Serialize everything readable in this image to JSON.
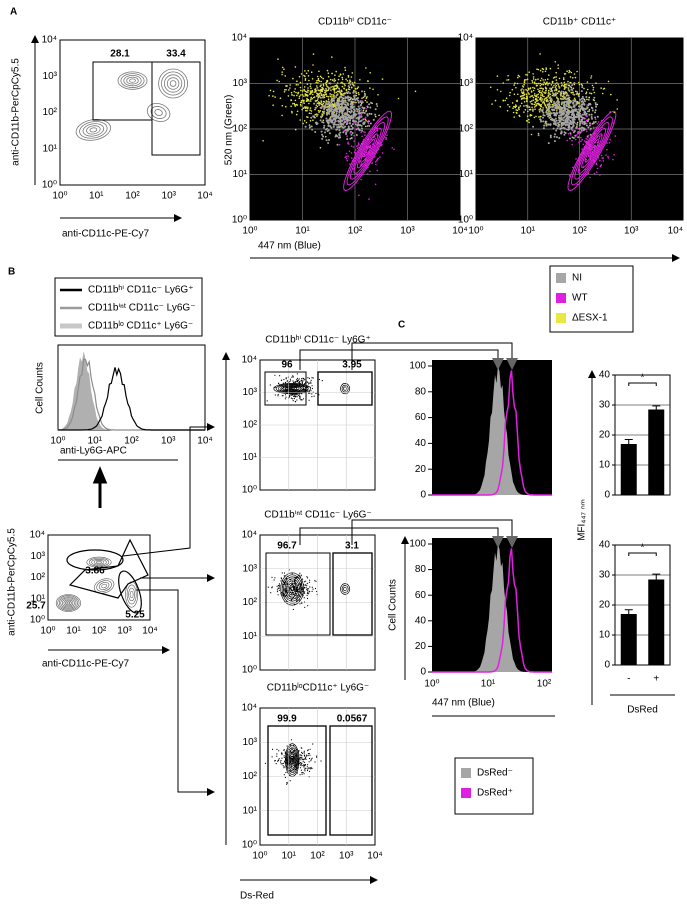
{
  "figure": {
    "log_ticks": [
      "10⁰",
      "10¹",
      "10²",
      "10³",
      "10⁴"
    ],
    "A": {
      "letter": "A",
      "gate_plot": {
        "y_label": "anti-CD11b-PerCpCy5.5",
        "x_label": "anti-CD11c-PE-Cy7",
        "gates": [
          28.1,
          33.4
        ]
      },
      "scatter_titles": [
        "CD11bʰⁱ CD11c⁻",
        "CD11b⁺ CD11c⁺"
      ],
      "y_label": "520 nm (Green)",
      "x_label": "447 nm (Blue)",
      "legend": [
        {
          "label": "NI",
          "color": "#a6a6a6"
        },
        {
          "label": "WT",
          "color": "#e020e0"
        },
        {
          "label": "ΔESX-1",
          "color": "#e8e840"
        }
      ]
    },
    "B": {
      "letter": "B",
      "legend": [
        {
          "label": "CD11bʰⁱ CD11c⁻ Ly6G⁺",
          "color": "#000000"
        },
        {
          "label": "CD11bⁱⁿᵗ CD11c⁻ Ly6G⁻",
          "color": "#9a9a9a"
        },
        {
          "label": "CD11bˡᵒ CD11c⁺ Ly6G⁻",
          "color": "#c8c8c8"
        }
      ],
      "histogram": {
        "y_label": "Cell Counts",
        "x_label": "anti-Ly6G-APC"
      },
      "gate_plot": {
        "y_label": "anti-CD11b-PerCpCy5.5",
        "x_label": "anti-CD11c-PE-Cy7",
        "gates": [
          3.86,
          25.7,
          5.25
        ]
      },
      "subsets": [
        {
          "title": "CD11bʰⁱ CD11c⁻ Ly6G⁺",
          "gates": [
            96,
            3.95
          ]
        },
        {
          "title": "CD11bⁱⁿᵗ CD11c⁻ Ly6G⁻",
          "gates": [
            96.7,
            3.1
          ]
        },
        {
          "title": "CD11bˡᵒCD11c⁺ Ly6G⁻",
          "gates": [
            99.9,
            0.0567
          ]
        }
      ],
      "x_label": "Ds-Red"
    },
    "C": {
      "letter": "C",
      "y_label": "Cell Counts",
      "x_label": "447 nm (Blue)",
      "yticks": [
        0,
        20,
        40,
        60,
        80,
        100
      ],
      "xticks": [
        "10⁰",
        "10¹",
        "10²"
      ],
      "legend": [
        {
          "label": "DsRed⁻",
          "color": "#a6a6a6"
        },
        {
          "label": "DsRed⁺",
          "color": "#e020e0"
        }
      ]
    }
  },
  "chart_data": [
    {
      "type": "bar",
      "categories": [
        null,
        null
      ],
      "values": [
        17,
        28.5
      ],
      "errors": [
        1.5,
        1.2
      ],
      "annotation": "*",
      "color": "#000000",
      "ylim": [
        0,
        40
      ],
      "yticks": [
        0,
        10,
        20,
        30,
        40
      ]
    },
    {
      "type": "bar",
      "categories": [
        "-",
        "+"
      ],
      "values": [
        17,
        28.5
      ],
      "errors": [
        1.4,
        1.8
      ],
      "annotation": "*",
      "color": "#000000",
      "ylim": [
        0,
        40
      ],
      "yticks": [
        0,
        10,
        20,
        30,
        40
      ],
      "x_label": "DsRed",
      "y_label": "MFI₄₄₇ ₙₘ"
    }
  ]
}
